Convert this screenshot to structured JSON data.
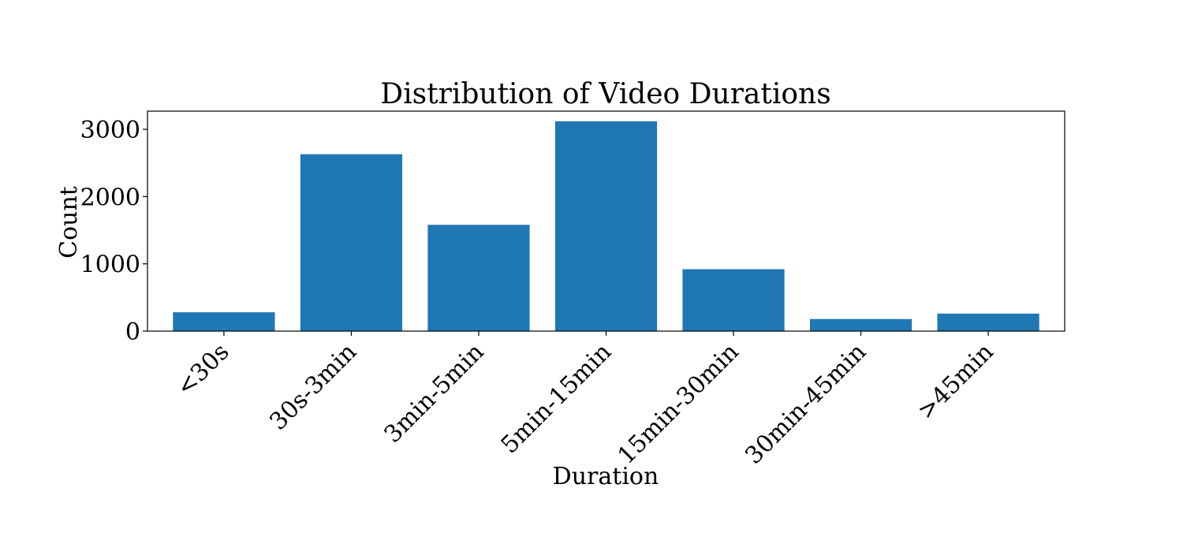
{
  "chart_data": {
    "type": "bar",
    "title": "Distribution of Video Durations",
    "xlabel": "Duration",
    "ylabel": "Count",
    "categories": [
      "<30s",
      "30s-3min",
      "3min-5min",
      "5min-15min",
      "15min-30min",
      "30min-45min",
      ">45min"
    ],
    "values": [
      280,
      2630,
      1580,
      3120,
      920,
      180,
      260
    ],
    "ylim": [
      0,
      3270
    ],
    "yticks": [
      0,
      1000,
      2000,
      3000
    ],
    "bar_color": "#1f77b4",
    "grid": false,
    "legend": "none",
    "xtick_rotation": -45
  }
}
